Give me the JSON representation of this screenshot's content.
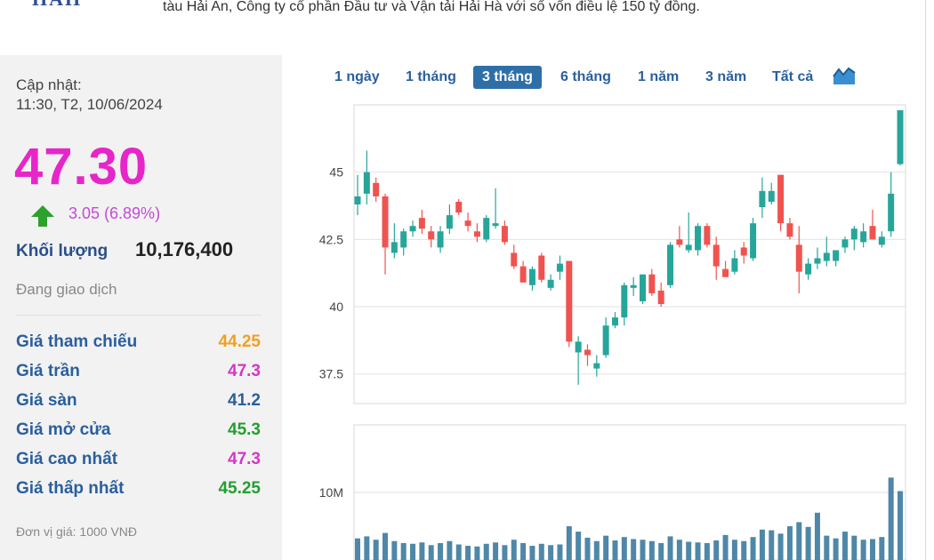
{
  "header": {
    "logo": "HAH",
    "text": "tàu Hải An, Công ty cổ phần Đầu tư và Vận tải Hải Hà với số vốn điều lệ 150 tỷ đồng."
  },
  "panel": {
    "update_label": "Cập nhật:",
    "update_time": "11:30, T2, 10/06/2024",
    "price": "47.30",
    "change": "3.05 (6.89%)",
    "volume_label": "Khối lượng",
    "volume_value": "10,176,400",
    "status": "Đang giao dịch",
    "rows": [
      {
        "label": "Giá tham chiếu",
        "value": "44.25",
        "color": "#f0a022"
      },
      {
        "label": "Giá trần",
        "value": "47.3",
        "color": "#d535c8"
      },
      {
        "label": "Giá sàn",
        "value": "41.2",
        "color": "#2a5f9e"
      },
      {
        "label": "Giá mở cửa",
        "value": "45.3",
        "color": "#22a02e"
      },
      {
        "label": "Giá cao nhất",
        "value": "47.3",
        "color": "#d535c8"
      },
      {
        "label": "Giá thấp nhất",
        "value": "45.25",
        "color": "#22a02e"
      }
    ],
    "unit": "Đơn vị giá: 1000 VNĐ"
  },
  "tabs": [
    "1 ngày",
    "1 tháng",
    "3 tháng",
    "6 tháng",
    "1 năm",
    "3 năm",
    "Tất cả"
  ],
  "active_tab": "3 tháng",
  "colors": {
    "up": "#26a69a",
    "down": "#ef5350",
    "volume": "#4f87a8",
    "price": "#e626c9"
  },
  "chart_data": {
    "type": "candlestick",
    "price_ticks": [
      "45",
      "42.5",
      "40",
      "37.5"
    ],
    "volume_ticks": [
      "10M"
    ],
    "price_range": [
      36.4,
      47.5
    ],
    "volume_max": 20,
    "volume_unit": "M",
    "candles": [
      {
        "o": 43.8,
        "h": 44.9,
        "l": 43.4,
        "c": 44.1
      },
      {
        "o": 44.2,
        "h": 45.8,
        "l": 43.8,
        "c": 45.0
      },
      {
        "o": 44.6,
        "h": 44.8,
        "l": 43.9,
        "c": 44.1
      },
      {
        "o": 44.1,
        "h": 44.2,
        "l": 41.2,
        "c": 42.2
      },
      {
        "o": 42.0,
        "h": 43.1,
        "l": 41.8,
        "c": 42.4
      },
      {
        "o": 42.2,
        "h": 42.9,
        "l": 41.9,
        "c": 42.8
      },
      {
        "o": 42.8,
        "h": 43.2,
        "l": 42.6,
        "c": 43.0
      },
      {
        "o": 43.3,
        "h": 43.6,
        "l": 42.7,
        "c": 42.9
      },
      {
        "o": 42.8,
        "h": 43.0,
        "l": 42.2,
        "c": 42.5
      },
      {
        "o": 42.2,
        "h": 43.0,
        "l": 42.0,
        "c": 42.8
      },
      {
        "o": 42.9,
        "h": 43.8,
        "l": 42.7,
        "c": 43.4
      },
      {
        "o": 43.9,
        "h": 44.0,
        "l": 43.4,
        "c": 43.5
      },
      {
        "o": 43.2,
        "h": 43.5,
        "l": 42.8,
        "c": 43.0
      },
      {
        "o": 42.8,
        "h": 43.1,
        "l": 42.4,
        "c": 42.6
      },
      {
        "o": 42.5,
        "h": 43.4,
        "l": 42.4,
        "c": 43.3
      },
      {
        "o": 43.0,
        "h": 44.4,
        "l": 42.9,
        "c": 43.1
      },
      {
        "o": 43.0,
        "h": 43.2,
        "l": 42.3,
        "c": 42.4
      },
      {
        "o": 42.0,
        "h": 42.3,
        "l": 41.4,
        "c": 41.5
      },
      {
        "o": 41.5,
        "h": 41.7,
        "l": 40.9,
        "c": 40.9
      },
      {
        "o": 40.8,
        "h": 41.5,
        "l": 40.6,
        "c": 41.4
      },
      {
        "o": 41.9,
        "h": 42.0,
        "l": 40.9,
        "c": 41.0
      },
      {
        "o": 40.7,
        "h": 41.2,
        "l": 40.6,
        "c": 41.0
      },
      {
        "o": 41.3,
        "h": 41.9,
        "l": 41.0,
        "c": 41.6
      },
      {
        "o": 41.7,
        "h": 41.7,
        "l": 38.5,
        "c": 38.7
      },
      {
        "o": 38.3,
        "h": 38.9,
        "l": 37.1,
        "c": 38.7
      },
      {
        "o": 38.4,
        "h": 38.6,
        "l": 37.8,
        "c": 38.2
      },
      {
        "o": 37.7,
        "h": 38.2,
        "l": 37.4,
        "c": 37.9
      },
      {
        "o": 38.2,
        "h": 39.6,
        "l": 38.1,
        "c": 39.3
      },
      {
        "o": 39.3,
        "h": 39.8,
        "l": 39.2,
        "c": 39.6
      },
      {
        "o": 39.6,
        "h": 40.9,
        "l": 39.3,
        "c": 40.8
      },
      {
        "o": 40.7,
        "h": 41.1,
        "l": 40.4,
        "c": 40.8
      },
      {
        "o": 40.2,
        "h": 41.2,
        "l": 40.1,
        "c": 41.2
      },
      {
        "o": 41.2,
        "h": 41.4,
        "l": 40.4,
        "c": 40.5
      },
      {
        "o": 40.6,
        "h": 40.9,
        "l": 40.0,
        "c": 40.1
      },
      {
        "o": 40.8,
        "h": 42.4,
        "l": 40.7,
        "c": 42.3
      },
      {
        "o": 42.5,
        "h": 43.0,
        "l": 42.2,
        "c": 42.3
      },
      {
        "o": 42.1,
        "h": 43.5,
        "l": 42.0,
        "c": 42.3
      },
      {
        "o": 42.1,
        "h": 43.1,
        "l": 41.9,
        "c": 43.0
      },
      {
        "o": 43.0,
        "h": 43.1,
        "l": 42.2,
        "c": 42.3
      },
      {
        "o": 42.3,
        "h": 42.6,
        "l": 41.0,
        "c": 41.5
      },
      {
        "o": 41.4,
        "h": 41.7,
        "l": 41.1,
        "c": 41.1
      },
      {
        "o": 41.3,
        "h": 42.1,
        "l": 41.2,
        "c": 41.8
      },
      {
        "o": 42.2,
        "h": 42.4,
        "l": 41.6,
        "c": 41.9
      },
      {
        "o": 41.8,
        "h": 43.3,
        "l": 41.7,
        "c": 43.1
      },
      {
        "o": 43.7,
        "h": 44.8,
        "l": 43.3,
        "c": 44.3
      },
      {
        "o": 43.9,
        "h": 44.6,
        "l": 43.8,
        "c": 44.3
      },
      {
        "o": 44.9,
        "h": 44.9,
        "l": 42.8,
        "c": 43.1
      },
      {
        "o": 43.1,
        "h": 43.3,
        "l": 42.5,
        "c": 42.6
      },
      {
        "o": 42.3,
        "h": 43.0,
        "l": 40.5,
        "c": 41.3
      },
      {
        "o": 41.2,
        "h": 41.8,
        "l": 41.0,
        "c": 41.6
      },
      {
        "o": 41.6,
        "h": 42.2,
        "l": 41.4,
        "c": 41.8
      },
      {
        "o": 41.7,
        "h": 42.6,
        "l": 41.5,
        "c": 42.0
      },
      {
        "o": 41.7,
        "h": 42.1,
        "l": 41.5,
        "c": 42.1
      },
      {
        "o": 42.2,
        "h": 42.6,
        "l": 42.0,
        "c": 42.5
      },
      {
        "o": 42.5,
        "h": 43.0,
        "l": 42.1,
        "c": 42.9
      },
      {
        "o": 42.4,
        "h": 43.1,
        "l": 42.2,
        "c": 42.8
      },
      {
        "o": 43.0,
        "h": 43.6,
        "l": 42.5,
        "c": 42.5
      },
      {
        "o": 42.3,
        "h": 42.8,
        "l": 42.2,
        "c": 42.6
      },
      {
        "o": 42.8,
        "h": 45.0,
        "l": 42.6,
        "c": 44.2
      },
      {
        "o": 45.3,
        "h": 47.3,
        "l": 45.25,
        "c": 47.3
      }
    ],
    "volumes": [
      3.2,
      3.5,
      3.0,
      4.0,
      2.8,
      2.5,
      2.4,
      2.6,
      2.2,
      2.5,
      2.8,
      2.3,
      2.1,
      2.0,
      2.4,
      2.6,
      2.2,
      3.0,
      2.5,
      2.1,
      2.4,
      2.2,
      2.3,
      5.0,
      4.2,
      3.3,
      2.8,
      3.6,
      2.9,
      3.4,
      3.1,
      3.0,
      2.8,
      2.5,
      3.5,
      3.0,
      2.7,
      2.6,
      2.5,
      2.9,
      3.7,
      3.0,
      2.8,
      3.4,
      4.5,
      4.4,
      3.9,
      5.0,
      5.6,
      4.9,
      7.0,
      3.6,
      3.2,
      4.2,
      3.6,
      3.0,
      3.1,
      3.4,
      12.2,
      10.2
    ]
  }
}
